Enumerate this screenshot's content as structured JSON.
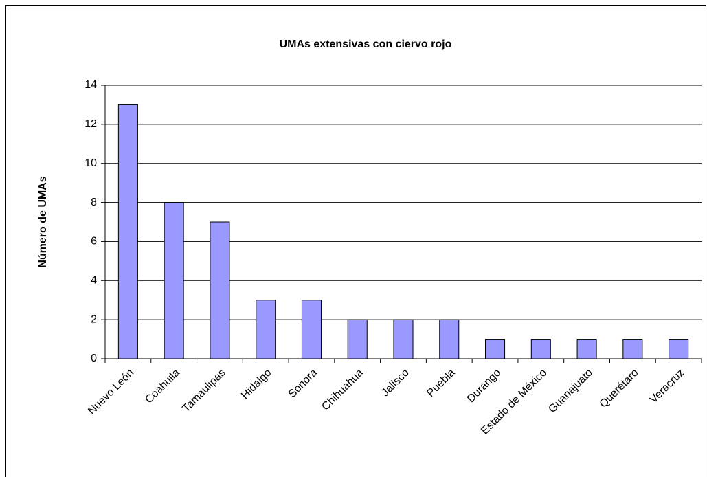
{
  "chart_data": {
    "type": "bar",
    "title": "UMAs extensivas con ciervo rojo",
    "y_label": "Número de UMAs",
    "categories": [
      "Nuevo León",
      "Coahuila",
      "Tamaulipas",
      "Hidalgo",
      "Sonora",
      "Chihuahua",
      "Jalisco",
      "Puebla",
      "Durango",
      "Estado de México",
      "Guanajuato",
      "Querétaro",
      "Veracruz"
    ],
    "values": [
      13,
      8,
      7,
      3,
      3,
      2,
      2,
      2,
      1,
      1,
      1,
      1,
      1
    ],
    "color": "#9999ff",
    "ylim": [
      0,
      14
    ],
    "yticks": [
      0,
      2,
      4,
      6,
      8,
      10,
      12,
      14
    ],
    "grid": true
  }
}
